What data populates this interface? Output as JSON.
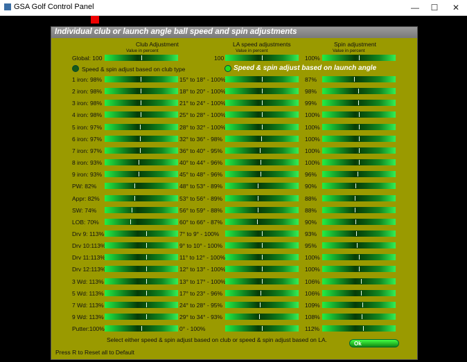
{
  "window": {
    "title": "GSA Golf Control Panel",
    "minimize": "—",
    "maximize": "☐",
    "close": "✕"
  },
  "panel": {
    "title": "Individual club or launch angle ball speed and spin adjustments"
  },
  "headers": {
    "club": "Club Adjustment",
    "club_sub": "Value in percent",
    "la": "LA speed adjustments",
    "la_sub": "Value in percent",
    "spin": "Spin adjustment",
    "spin_sub": "Value in percent"
  },
  "global": {
    "label": "Global: 100",
    "club_value": 100,
    "la_text": "100",
    "la_value": 100,
    "spin_text": "100%",
    "spin_value": 100
  },
  "modes": {
    "club": "Speed & spin adjust based on club type",
    "la": "Speed & spin adjust based on launch angle",
    "selected": "la"
  },
  "rows": [
    {
      "club": "1 iron: 98%",
      "club_value": 98,
      "la": "15° to 18° - 100%",
      "la_value": 100,
      "spin": "87%",
      "spin_value": 87
    },
    {
      "club": "2 iron: 98%",
      "club_value": 98,
      "la": "18° to 20° - 100%",
      "la_value": 100,
      "spin": "98%",
      "spin_value": 98
    },
    {
      "club": "3 iron: 98%",
      "club_value": 98,
      "la": "21° to 24° - 100%",
      "la_value": 100,
      "spin": "99%",
      "spin_value": 99
    },
    {
      "club": "4 iron: 98%",
      "club_value": 98,
      "la": "25° to 28° - 100%",
      "la_value": 100,
      "spin": "100%",
      "spin_value": 100
    },
    {
      "club": "5 iron: 97%",
      "club_value": 97,
      "la": "28° to 32° - 100%",
      "la_value": 100,
      "spin": "100%",
      "spin_value": 100
    },
    {
      "club": "6 iron: 97%",
      "club_value": 97,
      "la": "32° to 36° - 98%",
      "la_value": 98,
      "spin": "100%",
      "spin_value": 100
    },
    {
      "club": "7 iron: 97%",
      "club_value": 97,
      "la": "36° to 40° - 95%",
      "la_value": 95,
      "spin": "100%",
      "spin_value": 100
    },
    {
      "club": "8 iron: 93%",
      "club_value": 93,
      "la": "40° to 44° - 96%",
      "la_value": 96,
      "spin": "100%",
      "spin_value": 100
    },
    {
      "club": "9 iron: 93%",
      "club_value": 93,
      "la": "45° to 48° - 96%",
      "la_value": 96,
      "spin": "96%",
      "spin_value": 96
    },
    {
      "club": "PW:  82%",
      "club_value": 82,
      "la": "48° to 53° - 89%",
      "la_value": 89,
      "spin": "90%",
      "spin_value": 90
    },
    {
      "club": "Appr:  82%",
      "club_value": 82,
      "la": "53° to 56° - 89%",
      "la_value": 89,
      "spin": "88%",
      "spin_value": 88
    },
    {
      "club": "SW:  74%",
      "club_value": 74,
      "la": "56° to 59° - 88%",
      "la_value": 88,
      "spin": "88%",
      "spin_value": 88
    },
    {
      "club": "LOB:  70%",
      "club_value": 70,
      "la": "60° to 66° - 87%",
      "la_value": 87,
      "spin": "90%",
      "spin_value": 90
    },
    {
      "club": "Drv 9:  113%",
      "club_value": 113,
      "la": "7° to 9° - 100%",
      "la_value": 100,
      "spin": "93%",
      "spin_value": 93
    },
    {
      "club": "Drv 10:113%",
      "club_value": 113,
      "la": "9° to 10° - 100%",
      "la_value": 100,
      "spin": "95%",
      "spin_value": 95
    },
    {
      "club": "Drv 11:113%",
      "club_value": 113,
      "la": "11° to 12° - 100%",
      "la_value": 100,
      "spin": "100%",
      "spin_value": 100
    },
    {
      "club": "Drv 12:113%",
      "club_value": 113,
      "la": "12° to 13° - 100%",
      "la_value": 100,
      "spin": "100%",
      "spin_value": 100
    },
    {
      "club": "3 Wd: 113%",
      "club_value": 113,
      "la": "13° to 17° - 100%",
      "la_value": 100,
      "spin": "106%",
      "spin_value": 106
    },
    {
      "club": "5 Wd: 113%",
      "club_value": 113,
      "la": "17° to 23° - 96%",
      "la_value": 96,
      "spin": "106%",
      "spin_value": 106
    },
    {
      "club": "7 Wd: 113%",
      "club_value": 113,
      "la": "24° to 28° - 95%",
      "la_value": 95,
      "spin": "109%",
      "spin_value": 109
    },
    {
      "club": "9 Wd: 113%",
      "club_value": 113,
      "la": "29° to 34° - 93%",
      "la_value": 93,
      "spin": "108%",
      "spin_value": 108
    },
    {
      "club": "Putter:100%",
      "club_value": 100,
      "la": "0° - 100%",
      "la_value": 100,
      "spin": "112%",
      "spin_value": 112
    }
  ],
  "slider_range": [
    0,
    200
  ],
  "footer": {
    "hint": "Select either speed & spin adjust based on club or speed & spin adjust based on LA.",
    "reset": "Press R to Reset all to Default",
    "ok": "Ok"
  }
}
